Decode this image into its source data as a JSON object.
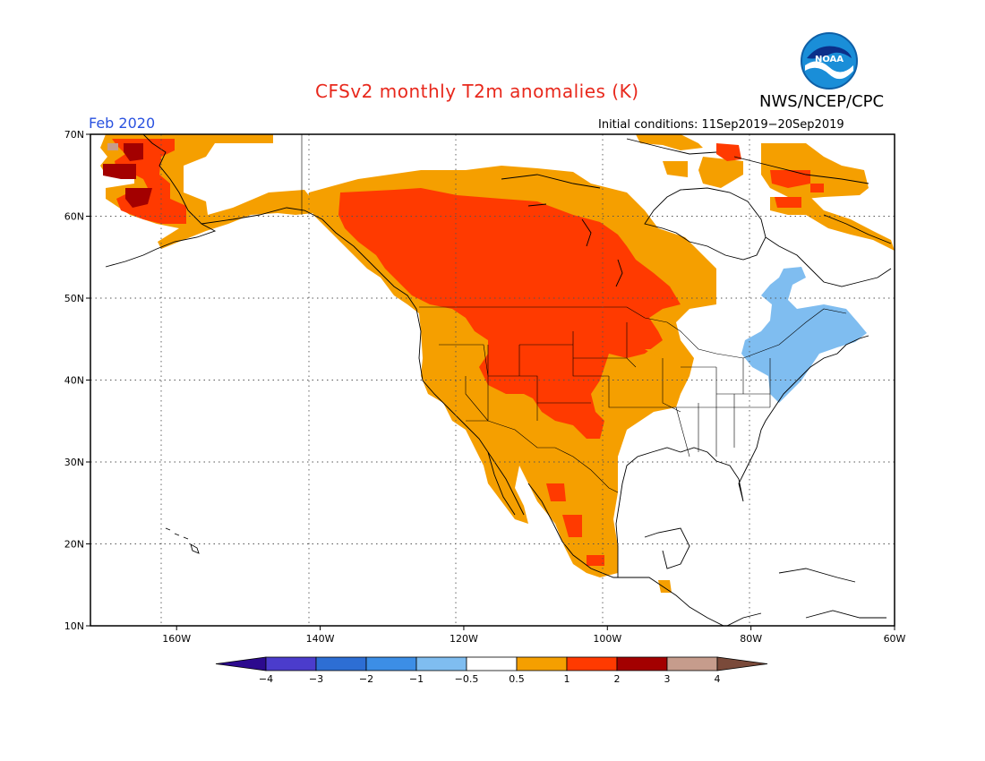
{
  "header": {
    "title": "CFSv2 monthly T2m anomalies (K)",
    "organization": "NWS/NCEP/CPC",
    "period": "Feb 2020",
    "initial_conditions": "Initial conditions: 11Sep2019−20Sep2019",
    "logo_text": "NOAA"
  },
  "map": {
    "projection": "lat-lon",
    "lon_range": [
      -172,
      -60
    ],
    "lat_range": [
      10,
      70
    ],
    "lat_ticks": [
      {
        "value": 70,
        "label": "70N"
      },
      {
        "value": 60,
        "label": "60N"
      },
      {
        "value": 50,
        "label": "50N"
      },
      {
        "value": 40,
        "label": "40N"
      },
      {
        "value": 30,
        "label": "30N"
      },
      {
        "value": 20,
        "label": "20N"
      },
      {
        "value": 10,
        "label": "10N"
      }
    ],
    "lon_ticks": [
      {
        "value": -160,
        "label": "160W"
      },
      {
        "value": -140,
        "label": "140W"
      },
      {
        "value": -120,
        "label": "120W"
      },
      {
        "value": -100,
        "label": "100W"
      },
      {
        "value": -80,
        "label": "80W"
      },
      {
        "value": -60,
        "label": "60W"
      }
    ],
    "grid": "dotted"
  },
  "colorbar": {
    "colors": [
      "#2c0a8e",
      "#4b3ccc",
      "#2d6ed4",
      "#3c8ee6",
      "#7fbdf0",
      "#ffffff",
      "#f59f00",
      "#ff3a00",
      "#a30000",
      "#c69c8c",
      "#7a4a3a"
    ],
    "labels": [
      "−4",
      "−3",
      "−2",
      "−1",
      "−0.5",
      "0.5",
      "1",
      "2",
      "3",
      "4"
    ]
  },
  "anomaly_regions": [
    {
      "category": "0.5-1",
      "color": "#f59f00",
      "description_region": "western and central North America"
    },
    {
      "category": "1-2",
      "color": "#ff3a00",
      "description_region": "western Canada and central US"
    },
    {
      "category": "2-3",
      "color": "#a30000",
      "description_region": "western Alaska"
    },
    {
      "category": "-1--0.5",
      "color": "#7fbdf0",
      "description_region": "northeastern US and Quebec"
    }
  ]
}
